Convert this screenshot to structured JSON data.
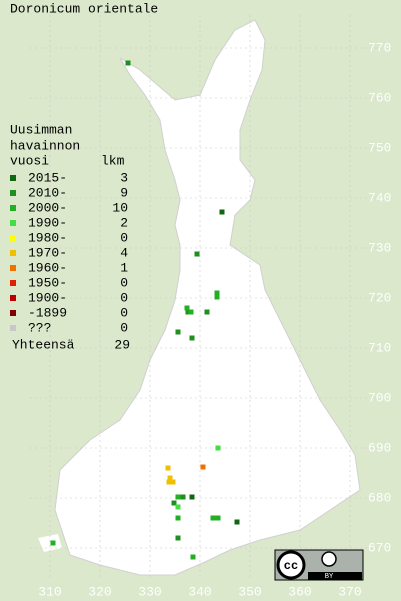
{
  "title": "Doronicum orientale",
  "legend": {
    "header": [
      "Uusimman",
      "havainnon",
      "vuosi"
    ],
    "count_header": "lkm",
    "items": [
      {
        "label": "2015-",
        "count": 3,
        "color": "#116611",
        "x": [
          344.4,
          338.4,
          347.4
        ],
        "y": [
          737.2,
          680.2,
          675.2
        ]
      },
      {
        "label": "2010-",
        "count": 9,
        "color": "#1f8f1f",
        "x": [
          325.6,
          339.4,
          341.4,
          338.4,
          335.6,
          335.6,
          336.6,
          337.6,
          334.8
        ],
        "y": [
          767,
          728.8,
          717.2,
          712,
          672,
          713.2,
          680.2,
          717.2,
          679
        ]
      },
      {
        "label": "2000-",
        "count": 10,
        "color": "#22b022",
        "x": [
          343.4,
          343.4,
          337.4,
          338.2,
          335.6,
          335.6,
          342.6,
          343.6,
          310.6,
          338.6
        ],
        "y": [
          721,
          720.2,
          718,
          717.2,
          680.2,
          676,
          676,
          676,
          671,
          668.2
        ]
      },
      {
        "label": "1990-",
        "count": 2,
        "color": "#44dd44",
        "x": [
          343.6,
          335.6
        ],
        "y": [
          690,
          678.2
        ]
      },
      {
        "label": "1980-",
        "count": 0,
        "color": "#ffff00",
        "x": [],
        "y": []
      },
      {
        "label": "1970-",
        "count": 4,
        "color": "#f0c000",
        "x": [
          333.6,
          334,
          334.6,
          333.8
        ],
        "y": [
          686,
          684,
          683.2,
          683.2
        ]
      },
      {
        "label": "1960-",
        "count": 1,
        "color": "#f07000",
        "x": [
          340.6
        ],
        "y": [
          686.2
        ]
      },
      {
        "label": "1950-",
        "count": 0,
        "color": "#e02000",
        "x": [],
        "y": []
      },
      {
        "label": "1900-",
        "count": 0,
        "color": "#c00000",
        "x": [],
        "y": []
      },
      {
        "label": "-1899",
        "count": 0,
        "color": "#800000",
        "x": [],
        "y": []
      },
      {
        "label": "???",
        "count": 0,
        "color": "#c8c8c8",
        "x": [],
        "y": []
      }
    ],
    "total_label": "Yhteensä",
    "total": 29
  },
  "xlim": [
    310,
    370
  ],
  "xticks": [
    310,
    320,
    330,
    340,
    350,
    360,
    370
  ],
  "ylim": [
    670,
    770
  ],
  "yticks": [
    770,
    760,
    750,
    740,
    730,
    720,
    710,
    700,
    690,
    680,
    670
  ],
  "badge": {
    "logo": "cc",
    "by": "BY"
  }
}
